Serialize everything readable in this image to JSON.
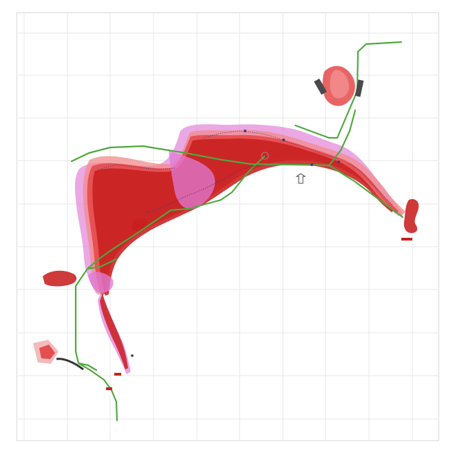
{
  "map": {
    "background_color": "#ffffff",
    "grid_color": "#e7e7e7",
    "route_color": "#4fa83d",
    "deposit_colors": [
      "#c81f1f",
      "#e44343",
      "#f28b8b",
      "#df7bd5",
      "#f0b0b0"
    ],
    "footer_note": "",
    "callout_text": "",
    "grid": {
      "x_ticks": [
        "",
        "",
        "",
        "",
        "",
        "",
        "",
        "",
        "",
        "",
        ""
      ],
      "y_ticks": [
        "",
        "",
        "",
        "",
        "",
        "",
        "",
        "",
        "",
        ""
      ]
    }
  }
}
